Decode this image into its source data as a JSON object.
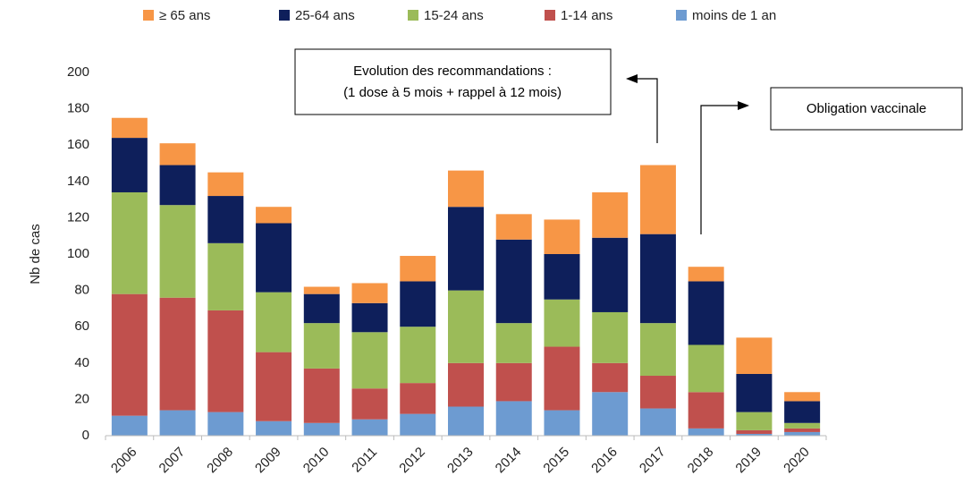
{
  "chart_data": {
    "type": "stacked_bar",
    "ylabel": "Nb de cas",
    "categories": [
      "2006",
      "2007",
      "2008",
      "2009",
      "2010",
      "2011",
      "2012",
      "2013",
      "2014",
      "2015",
      "2016",
      "2017",
      "2018",
      "2019",
      "2020"
    ],
    "series": [
      {
        "name": "≥ 65 ans",
        "color": "#f79646",
        "values": [
          11,
          12,
          13,
          9,
          4,
          11,
          14,
          20,
          14,
          19,
          25,
          38,
          8,
          20,
          5
        ]
      },
      {
        "name": "25-64 ans",
        "color": "#0e1f5b",
        "values": [
          30,
          22,
          26,
          38,
          16,
          16,
          25,
          46,
          46,
          25,
          41,
          49,
          35,
          21,
          12
        ]
      },
      {
        "name": "15-24 ans",
        "color": "#9bbb59",
        "values": [
          56,
          51,
          37,
          33,
          25,
          31,
          31,
          40,
          22,
          26,
          28,
          29,
          26,
          10,
          3
        ]
      },
      {
        "name": "1-14 ans",
        "color": "#c0504d",
        "values": [
          67,
          62,
          56,
          38,
          30,
          17,
          17,
          24,
          21,
          35,
          16,
          18,
          20,
          2,
          2
        ]
      },
      {
        "name": "moins de 1 an",
        "color": "#6d9bd1",
        "values": [
          11,
          14,
          13,
          8,
          7,
          9,
          12,
          16,
          19,
          14,
          24,
          15,
          4,
          1,
          2
        ]
      }
    ],
    "ylim": [
      0,
      200
    ],
    "yticks": [
      0,
      20,
      40,
      60,
      80,
      100,
      120,
      140,
      160,
      180,
      200
    ],
    "annotations": [
      "Evolution des recommandations :",
      "(1 dose à 5 mois + rappel à 12 mois)",
      "Obligation vaccinale"
    ]
  }
}
